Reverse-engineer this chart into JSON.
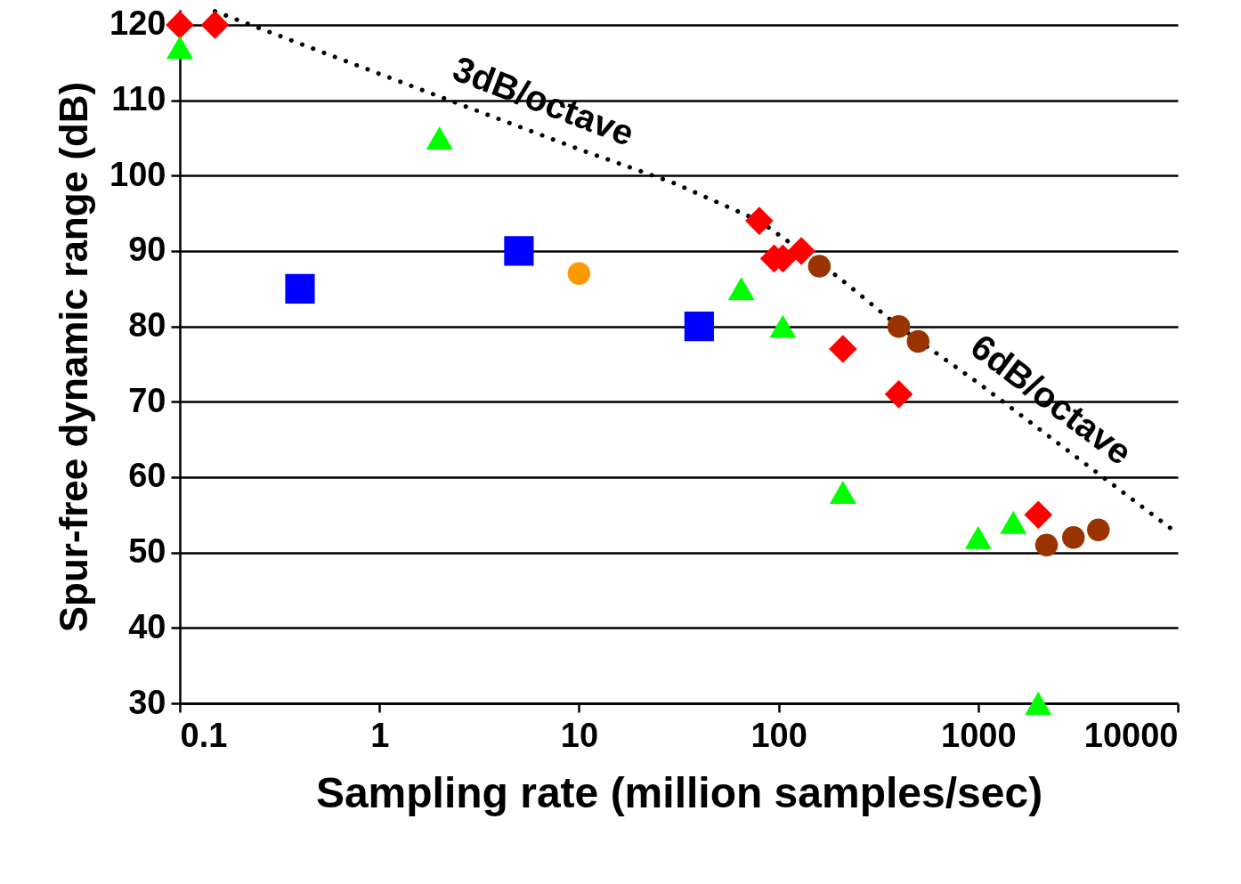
{
  "chart_data": {
    "type": "scatter",
    "xlabel": "Sampling rate (million samples/sec)",
    "ylabel": "Spur-free dynamic range (dB)",
    "log": "x",
    "grid": "y",
    "xlim": [
      0.1,
      10000
    ],
    "xticks": [
      0.1,
      1,
      10,
      100,
      1000,
      10000
    ],
    "ylim": [
      30,
      122
    ],
    "yticks": [
      30,
      40,
      50,
      60,
      70,
      80,
      90,
      100,
      110,
      120
    ],
    "series": [
      {
        "type": "line",
        "color": "#000000",
        "line_style": "dotted",
        "marker": "none",
        "x": [
          0.15,
          1,
          10,
          30,
          80,
          200,
          400,
          1000,
          10000
        ],
        "values": [
          121.8,
          113.5,
          103.5,
          99,
          94,
          86.5,
          80,
          72.5,
          52.5
        ]
      },
      {
        "color": "#ff0000",
        "marker": "diamond",
        "x": [
          0.1,
          0.15,
          80,
          95,
          105,
          130,
          210,
          400,
          2000
        ],
        "values": [
          120,
          120,
          94,
          89,
          89,
          90,
          77,
          71,
          55
        ]
      },
      {
        "color": "#00ff00",
        "marker": "triangle",
        "x": [
          0.1,
          2,
          65,
          105,
          210,
          1000,
          1500,
          2000
        ],
        "values": [
          117,
          105,
          85,
          80,
          58,
          52,
          54,
          30
        ]
      },
      {
        "color": "#0000ff",
        "marker": "square",
        "x": [
          0.4,
          5,
          40
        ],
        "values": [
          85,
          90,
          80
        ]
      },
      {
        "color": "#ff9900",
        "marker": "circle",
        "x": [
          10
        ],
        "values": [
          87
        ]
      },
      {
        "color": "#993300",
        "marker": "circle",
        "x": [
          160,
          400,
          500,
          2200,
          3000,
          4000
        ],
        "values": [
          88,
          80,
          78,
          51,
          52,
          53
        ]
      }
    ],
    "annotations": [
      "3dB/octave",
      "6dB/octave"
    ]
  }
}
